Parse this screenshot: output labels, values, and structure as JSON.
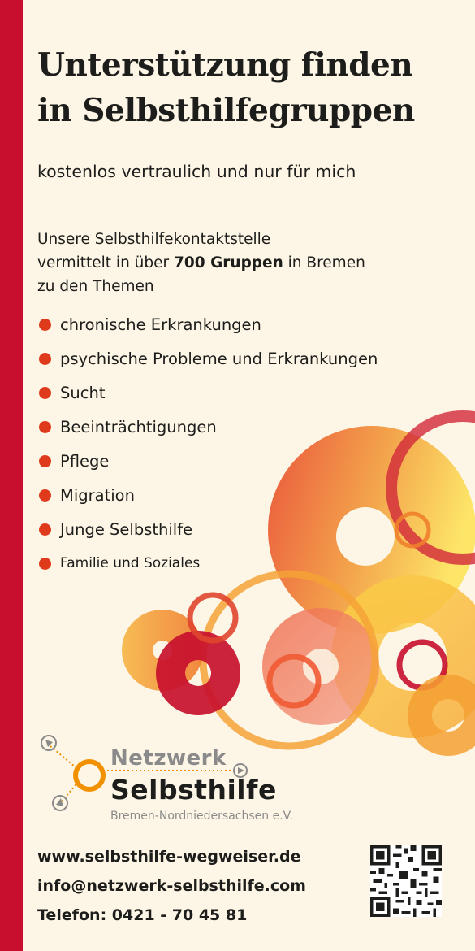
{
  "headline": [
    "Unterstützung finden",
    "in Selbsthilfegruppen"
  ],
  "subline": "kostenlos vertraulich und nur für mich",
  "intro": {
    "line1": "Unsere Selbsthilfekontaktstelle",
    "line2_before": "vermittelt in über ",
    "line2_bold": "700 Gruppen",
    "line2_after": " in Bremen",
    "line3": "zu den Themen"
  },
  "topics": [
    "chronische Erkrankungen",
    "psychische Probleme und Erkrankungen",
    "Sucht",
    "Beeinträchtigungen",
    "Pflege",
    "Migration",
    "Junge Selbsthilfe",
    "Familie und Soziales"
  ],
  "logo": {
    "netzwerk": "Netzwerk",
    "selbsthilfe": "Selbsthilfe",
    "region": "Bremen-Nordniedersachsen e.V."
  },
  "contact": {
    "web": "www.selbsthilfe-wegweiser.de",
    "email": "info@netzwerk-selbsthilfe.com",
    "phone": "Telefon: 0421 - 70 45 81"
  },
  "colors": {
    "accent_red": "#c8102e",
    "bullet_orange": "#e03a1c",
    "logo_orange": "#f29100",
    "background": "#fdf6e6"
  }
}
